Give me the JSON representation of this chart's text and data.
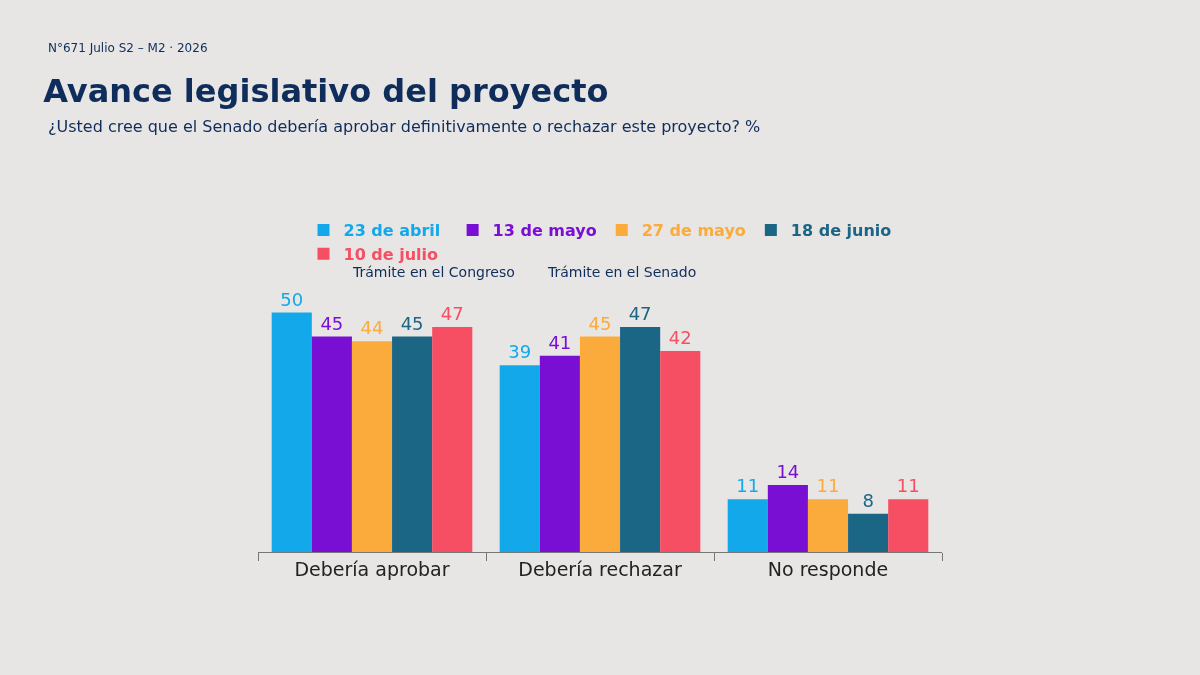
{
  "chart_data": {
    "type": "bar",
    "title": "Avance legislativo del proyecto",
    "subtitle": "¿Usted cree que el Senado debería aprobar definitivamente o rechazar este proyecto? %",
    "categories": [
      "Debería aprobar",
      "Debería rechazar",
      "No responde"
    ],
    "series": [
      {
        "name": "23 de abril",
        "color": "#12a8ea",
        "values": [
          50,
          39,
          11
        ]
      },
      {
        "name": "13 de mayo",
        "color": "#7a0fd4",
        "values": [
          45,
          41,
          14
        ]
      },
      {
        "name": "27 de mayo",
        "color": "#fbab3b",
        "values": [
          44,
          45,
          11
        ]
      },
      {
        "name": "18 de junio",
        "color": "#1b6585",
        "values": [
          45,
          47,
          8
        ]
      },
      {
        "name": "10 de julio",
        "color": "#f64e63",
        "values": [
          47,
          42,
          11
        ]
      }
    ],
    "data_labels": true,
    "legend": "top",
    "grid": false,
    "annotations": [
      "N°671 Julio S2 – M2 · 2026",
      "Trámite en el Congreso",
      "Trámite en el Senado"
    ]
  }
}
